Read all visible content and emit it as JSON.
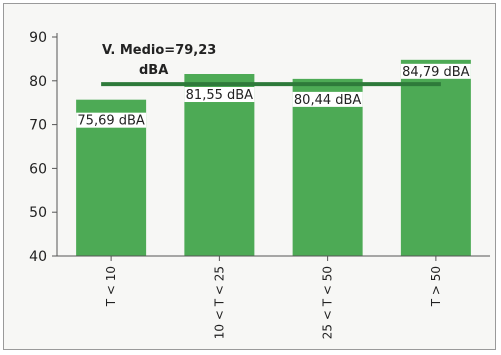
{
  "chart_data": {
    "type": "bar",
    "categories": [
      "T < 10",
      "10 < T < 25",
      "25 < T < 50",
      "T > 50"
    ],
    "values": [
      75.69,
      81.55,
      80.44,
      84.79
    ],
    "value_labels": [
      "75,69 dBA",
      "81,55 dBA",
      "80,44 dBA",
      "84,79 dBA"
    ],
    "mean": 79.23,
    "annotation": {
      "line1": "V. Medio=79,23",
      "line2": "dBA"
    },
    "ylim": [
      40,
      90
    ],
    "yticks": [
      "40",
      "50",
      "60",
      "70",
      "80",
      "90"
    ],
    "xlabel": "",
    "ylabel": "",
    "title": "",
    "grid": false,
    "colors": {
      "bar": "#4daa55",
      "mean_line": "#2e7a3a",
      "axis": "#555555",
      "text": "#222222"
    }
  }
}
